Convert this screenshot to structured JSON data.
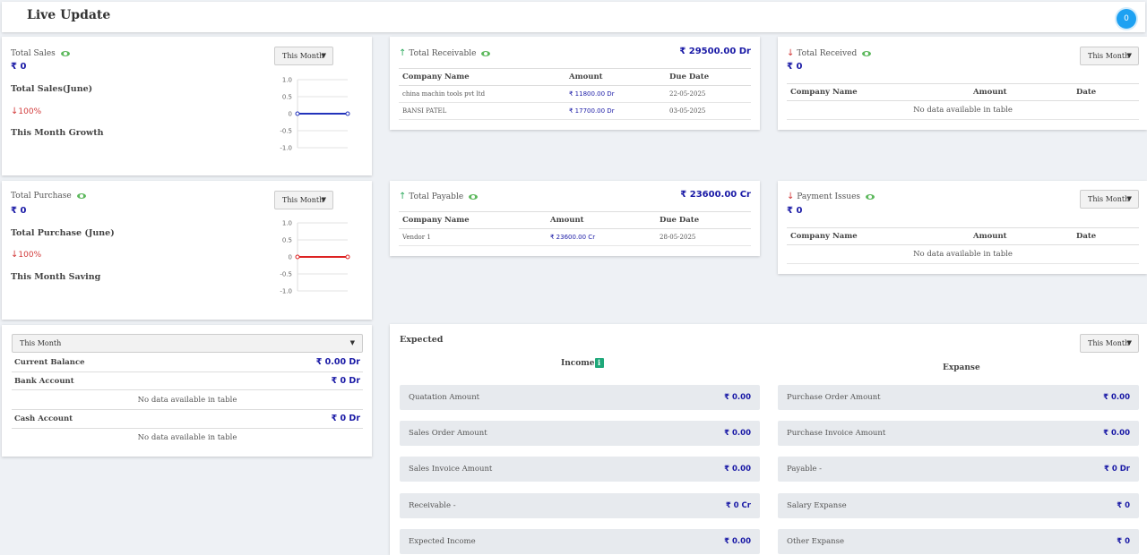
{
  "header": {
    "title": "Live Update",
    "notification_count": "0"
  },
  "dropdown_label": "This Month",
  "sales": {
    "title": "Total Sales",
    "amount": "₹ 0",
    "subtitle": "Total Sales(June)",
    "growth": "100%",
    "growth_label": "This Month Growth",
    "line_color": "#2233bb"
  },
  "purchase": {
    "title": "Total Purchase",
    "amount": "₹ 0",
    "subtitle": "Total Purchase (June)",
    "growth": "100%",
    "growth_label": "This Month Saving",
    "line_color": "#dd2222"
  },
  "chart_ticks": [
    "1.0",
    "0.5",
    "0",
    "-0.5",
    "-1.0"
  ],
  "chart_data": [
    {
      "type": "line",
      "series": [
        {
          "values": [
            0,
            0
          ]
        }
      ],
      "ylim": [
        -1.0,
        1.0
      ],
      "yticks": [
        1.0,
        0.5,
        0,
        -0.5,
        -1.0
      ]
    },
    {
      "type": "line",
      "series": [
        {
          "values": [
            0,
            0
          ]
        }
      ],
      "ylim": [
        -1.0,
        1.0
      ],
      "yticks": [
        1.0,
        0.5,
        0,
        -0.5,
        -1.0
      ]
    }
  ],
  "receivable": {
    "title": "Total Receivable",
    "total": "₹ 29500.00 Dr",
    "columns": [
      "Company Name",
      "Amount",
      "Due Date"
    ],
    "rows": [
      [
        "china machin tools pvt ltd",
        "₹ 11800.00 Dr",
        "22-05-2025"
      ],
      [
        "BANSI PATEL",
        "₹ 17700.00 Dr",
        "03-05-2025"
      ]
    ]
  },
  "received": {
    "title": "Total Received",
    "amount": "₹ 0",
    "columns": [
      "Company Name",
      "Amount",
      "Date"
    ],
    "empty": "No data available in table"
  },
  "payable": {
    "title": "Total Payable",
    "total": "₹ 23600.00 Cr",
    "columns": [
      "Company Name",
      "Amount",
      "Due Date"
    ],
    "rows": [
      [
        "Vendor 1",
        "₹ 23600.00 Cr",
        "28-05-2025"
      ]
    ]
  },
  "payment_issues": {
    "title": "Payment Issues",
    "amount": "₹ 0",
    "columns": [
      "Company Name",
      "Amount",
      "Date"
    ],
    "empty": "No data available in table"
  },
  "balance": {
    "select_value": "This Month",
    "current_balance_label": "Current Balance",
    "current_balance_value": "₹ 0.00 Dr",
    "bank_label": "Bank Account",
    "bank_value": "₹ 0 Dr",
    "bank_empty": "No data available in table",
    "cash_label": "Cash Account",
    "cash_value": "₹ 0 Dr",
    "cash_empty": "No data available in table"
  },
  "expected": {
    "title": "Expected",
    "income_label": "Income",
    "expanse_label": "Expanse",
    "income_rows": [
      {
        "label": "Quatation Amount",
        "value": "₹ 0.00"
      },
      {
        "label": "Sales Order Amount",
        "value": "₹ 0.00"
      },
      {
        "label": "Sales Invoice Amount",
        "value": "₹ 0.00"
      },
      {
        "label": "Receivable -",
        "value": "₹ 0 Cr"
      },
      {
        "label": "Expected Income",
        "value": "₹ 0.00"
      }
    ],
    "expanse_rows": [
      {
        "label": "Purchase Order Amount",
        "value": "₹ 0.00"
      },
      {
        "label": "Purchase Invoice Amount",
        "value": "₹ 0.00"
      },
      {
        "label": "Payable -",
        "value": "₹ 0 Dr"
      },
      {
        "label": "Salary Expanse",
        "value": "₹ 0"
      },
      {
        "label": "Other Expanse",
        "value": "₹ 0"
      }
    ]
  }
}
